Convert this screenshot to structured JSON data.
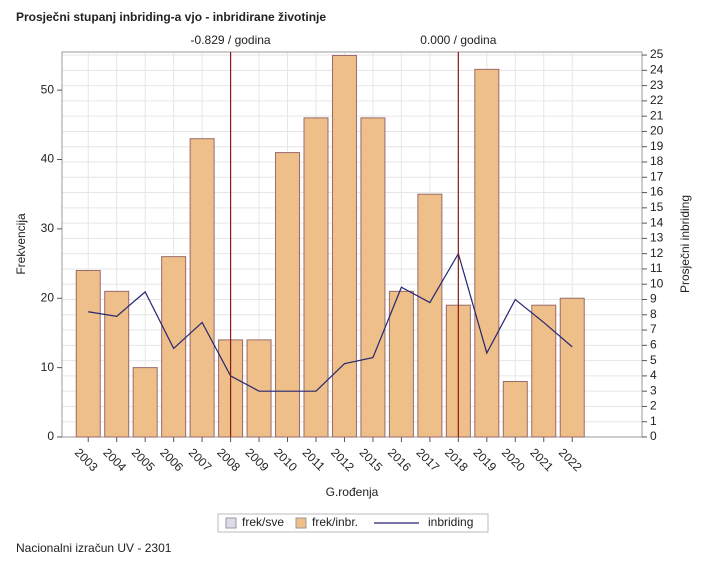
{
  "chart_data": {
    "type": "bar",
    "title": "Prosječni stupanj inbriding-a vjo - inbridirane životinje",
    "xlabel": "G.rođenja",
    "ylabel": "Frekvencija",
    "y2label": "Prosječni inbriding",
    "footer": "Nacionalni izračun UV - 2301",
    "categories": [
      "2003",
      "2004",
      "2005",
      "2006",
      "2007",
      "2008",
      "2009",
      "2010",
      "2011",
      "2012",
      "2015",
      "2016",
      "2017",
      "2018",
      "2019",
      "2020",
      "2021",
      "2022"
    ],
    "series": [
      {
        "name": "frek/sve",
        "type": "bar",
        "color": "#dcdcea",
        "values": [
          null,
          null,
          null,
          null,
          null,
          null,
          null,
          null,
          null,
          null,
          null,
          null,
          null,
          null,
          null,
          null,
          null,
          null
        ]
      },
      {
        "name": "frek/inbr.",
        "type": "bar",
        "color": "#eebf89",
        "values": [
          24,
          21,
          10,
          26,
          43,
          14,
          14,
          41,
          46,
          55,
          46,
          21,
          35,
          19,
          53,
          8,
          19,
          20
        ]
      },
      {
        "name": "inbriding",
        "type": "line",
        "axis": "y2",
        "color": "#262672",
        "values": [
          8.2,
          7.9,
          9.5,
          5.8,
          7.5,
          4.0,
          3.0,
          3.0,
          3.0,
          4.8,
          5.2,
          9.8,
          8.8,
          12.0,
          5.5,
          9.0,
          7.5,
          5.9
        ]
      }
    ],
    "reflines": [
      {
        "category": "2008",
        "label": "-0.829 / godina"
      },
      {
        "category": "2018",
        "label": "0.000 / godina"
      }
    ],
    "ylim": [
      0,
      55.5
    ],
    "yticks": [
      0,
      10,
      20,
      30,
      40,
      50
    ],
    "y2lim": [
      0,
      25.2
    ],
    "y2ticks": [
      0,
      1,
      2,
      3,
      4,
      5,
      6,
      7,
      8,
      9,
      10,
      11,
      12,
      13,
      14,
      15,
      16,
      17,
      18,
      19,
      20,
      21,
      22,
      23,
      24,
      25
    ],
    "grid": true
  }
}
